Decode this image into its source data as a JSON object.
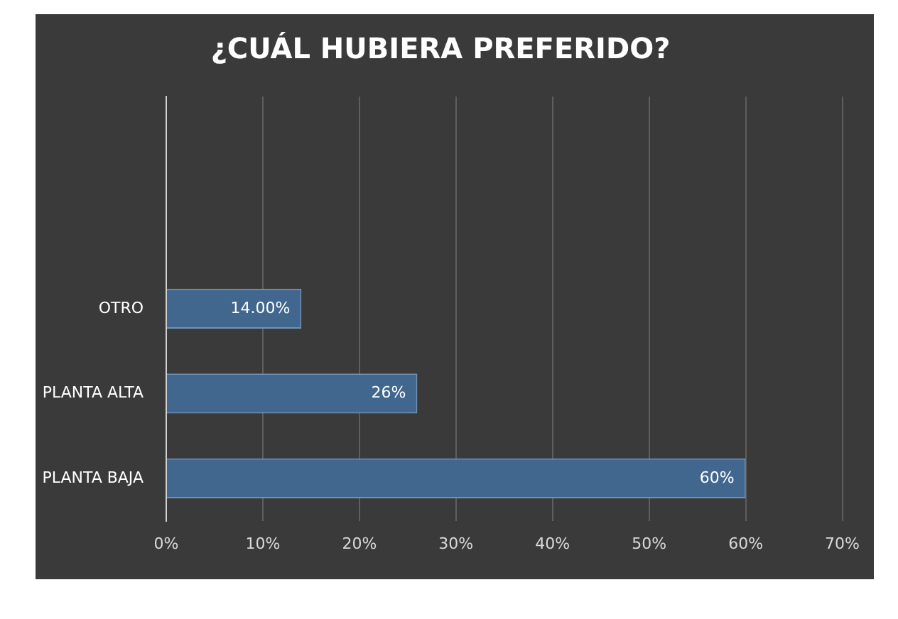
{
  "chart_data": {
    "type": "bar",
    "orientation": "horizontal",
    "title": "¿CUÁL HUBIERA PREFERIDO?",
    "categories": [
      null,
      null,
      "OTRO",
      "PLANTA ALTA",
      "PLANTA BAJA"
    ],
    "values": [
      null,
      null,
      14,
      26,
      60
    ],
    "value_labels": [
      null,
      null,
      "14.00%",
      "26%",
      "60%"
    ],
    "color": "#41678f",
    "xlim": [
      0,
      70
    ],
    "xticks": [
      {
        "value": 0,
        "label": "0%"
      },
      {
        "value": 10,
        "label": "10%"
      },
      {
        "value": 20,
        "label": "20%"
      },
      {
        "value": 30,
        "label": "30%"
      },
      {
        "value": 40,
        "label": "40%"
      },
      {
        "value": 50,
        "label": "50%"
      },
      {
        "value": 60,
        "label": "60%"
      },
      {
        "value": 70,
        "label": "70%"
      }
    ],
    "grid": "x",
    "legend": false
  }
}
